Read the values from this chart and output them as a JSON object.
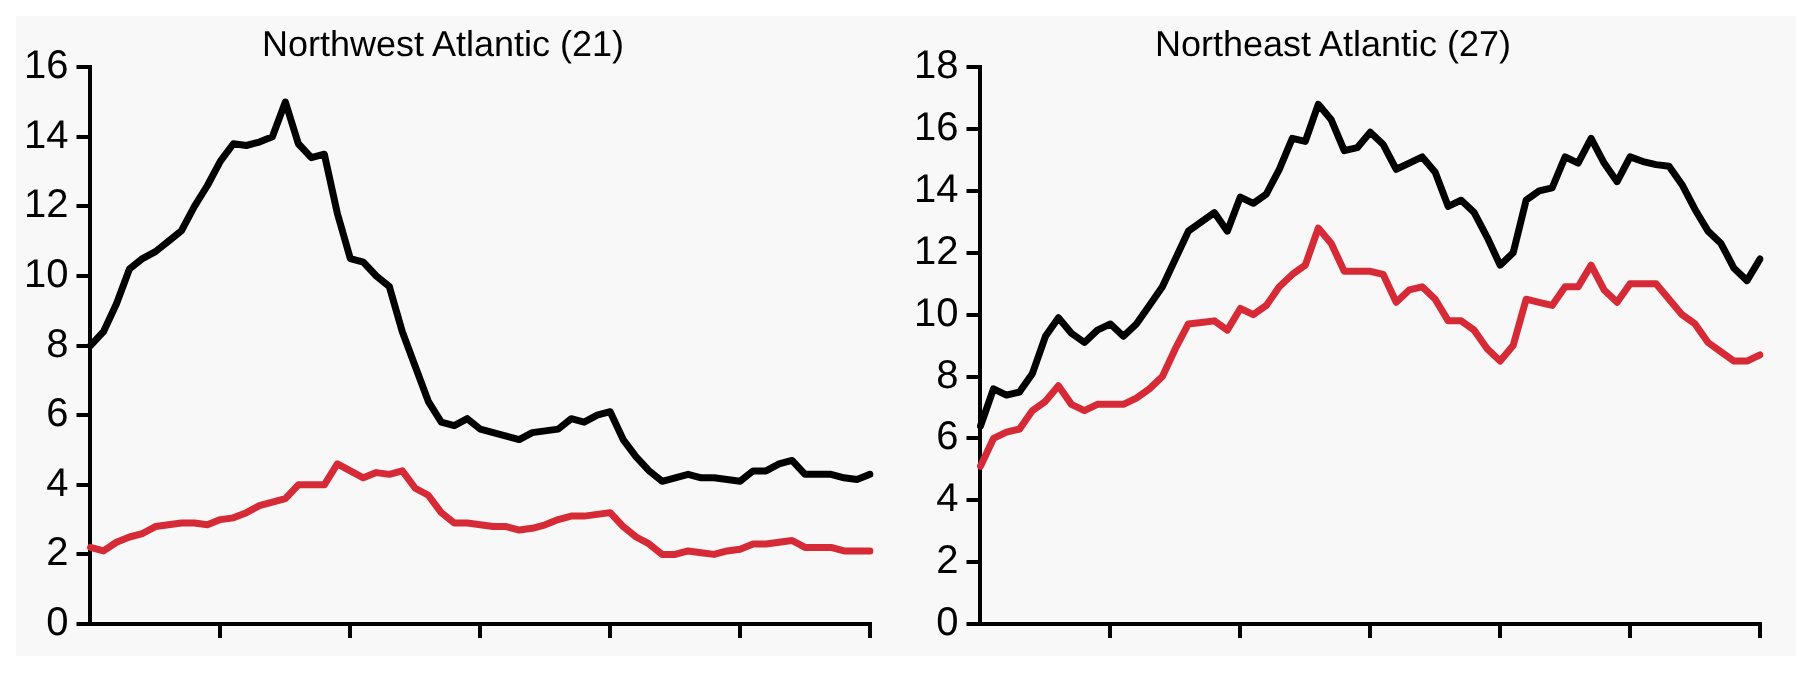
{
  "chart_data": [
    {
      "type": "line",
      "title": "Northwest Atlantic (21)",
      "categories": [
        null,
        null,
        null,
        null,
        null,
        null,
        null,
        null,
        null,
        null,
        null,
        null,
        null,
        null,
        null,
        null,
        null,
        null,
        null,
        null,
        null,
        null,
        null,
        null,
        null,
        null,
        null,
        null,
        null,
        null,
        null,
        null,
        null,
        null,
        null,
        null,
        null,
        null,
        null,
        null,
        null,
        null,
        null,
        null,
        null,
        null,
        null,
        null,
        null,
        null,
        null,
        null,
        null,
        null,
        null,
        null,
        null,
        null,
        null,
        null,
        null
      ],
      "series": [
        {
          "color": "#000000",
          "values": [
            8.0,
            8.4,
            9.2,
            10.2,
            10.5,
            10.7,
            11.0,
            11.3,
            12.0,
            12.6,
            13.3,
            13.8,
            13.75,
            13.85,
            14.0,
            15.0,
            13.8,
            13.4,
            13.5,
            11.8,
            10.5,
            10.4,
            10.0,
            9.7,
            8.4,
            7.4,
            6.4,
            5.8,
            5.7,
            5.9,
            5.6,
            5.5,
            5.4,
            5.3,
            5.5,
            5.55,
            5.6,
            5.9,
            5.8,
            6.0,
            6.1,
            5.3,
            4.8,
            4.4,
            4.1,
            4.2,
            4.3,
            4.2,
            4.2,
            4.15,
            4.1,
            4.4,
            4.4,
            4.6,
            4.7,
            4.3,
            4.3,
            4.3,
            4.2,
            4.15,
            4.3
          ]
        },
        {
          "color": "#d62a36",
          "values": [
            2.2,
            2.1,
            2.35,
            2.5,
            2.6,
            2.8,
            2.85,
            2.9,
            2.9,
            2.85,
            3.0,
            3.05,
            3.2,
            3.4,
            3.5,
            3.6,
            4.0,
            4.0,
            4.0,
            4.6,
            4.4,
            4.2,
            4.35,
            4.3,
            4.4,
            3.9,
            3.7,
            3.2,
            2.9,
            2.9,
            2.85,
            2.8,
            2.8,
            2.7,
            2.75,
            2.85,
            3.0,
            3.1,
            3.1,
            3.15,
            3.2,
            2.8,
            2.5,
            2.3,
            2.0,
            2.0,
            2.1,
            2.05,
            2.0,
            2.1,
            2.15,
            2.3,
            2.3,
            2.35,
            2.4,
            2.2,
            2.2,
            2.2,
            2.1,
            2.1,
            2.1
          ]
        }
      ],
      "ylim": [
        0,
        16
      ],
      "yticks": [
        0,
        2,
        4,
        6,
        8,
        10,
        12,
        14,
        16
      ],
      "grid": false,
      "legend": false,
      "tick_labels": "y",
      "marker": "none",
      "line_style": "solid"
    },
    {
      "type": "line",
      "title": "Northeast Atlantic (27)",
      "categories": [
        null,
        null,
        null,
        null,
        null,
        null,
        null,
        null,
        null,
        null,
        null,
        null,
        null,
        null,
        null,
        null,
        null,
        null,
        null,
        null,
        null,
        null,
        null,
        null,
        null,
        null,
        null,
        null,
        null,
        null,
        null,
        null,
        null,
        null,
        null,
        null,
        null,
        null,
        null,
        null,
        null,
        null,
        null,
        null,
        null,
        null,
        null,
        null,
        null,
        null,
        null,
        null,
        null,
        null,
        null,
        null,
        null,
        null,
        null,
        null,
        null
      ],
      "series": [
        {
          "color": "#000000",
          "values": [
            6.4,
            7.6,
            7.4,
            7.5,
            8.1,
            9.3,
            9.9,
            9.4,
            9.1,
            9.5,
            9.7,
            9.3,
            9.7,
            10.3,
            10.9,
            11.8,
            12.7,
            13.0,
            13.3,
            12.7,
            13.8,
            13.6,
            13.9,
            14.7,
            15.7,
            15.6,
            16.8,
            16.3,
            15.3,
            15.4,
            15.9,
            15.5,
            14.7,
            14.9,
            15.1,
            14.6,
            13.5,
            13.7,
            13.3,
            12.5,
            11.6,
            12.0,
            13.7,
            14.0,
            14.1,
            15.1,
            14.9,
            15.7,
            14.9,
            14.3,
            15.1,
            14.95,
            14.85,
            14.8,
            14.2,
            13.4,
            12.7,
            12.3,
            11.5,
            11.1,
            11.8
          ]
        },
        {
          "color": "#d62a36",
          "values": [
            5.1,
            6.0,
            6.2,
            6.3,
            6.9,
            7.2,
            7.7,
            7.1,
            6.9,
            7.1,
            7.1,
            7.1,
            7.3,
            7.6,
            8.0,
            8.9,
            9.7,
            9.75,
            9.8,
            9.5,
            10.2,
            10.0,
            10.3,
            10.9,
            11.3,
            11.6,
            12.8,
            12.3,
            11.4,
            11.4,
            11.4,
            11.3,
            10.4,
            10.8,
            10.9,
            10.5,
            9.8,
            9.8,
            9.5,
            8.9,
            8.5,
            9.0,
            10.5,
            10.4,
            10.3,
            10.9,
            10.9,
            11.6,
            10.8,
            10.4,
            11.0,
            11.0,
            11.0,
            10.5,
            10.0,
            9.7,
            9.1,
            8.8,
            8.5,
            8.5,
            8.7
          ]
        }
      ],
      "ylim": [
        0,
        18
      ],
      "yticks": [
        0,
        2,
        4,
        6,
        8,
        10,
        12,
        14,
        16,
        18
      ],
      "grid": false,
      "legend": false,
      "tick_labels": "y",
      "marker": "none",
      "line_style": "solid"
    }
  ]
}
